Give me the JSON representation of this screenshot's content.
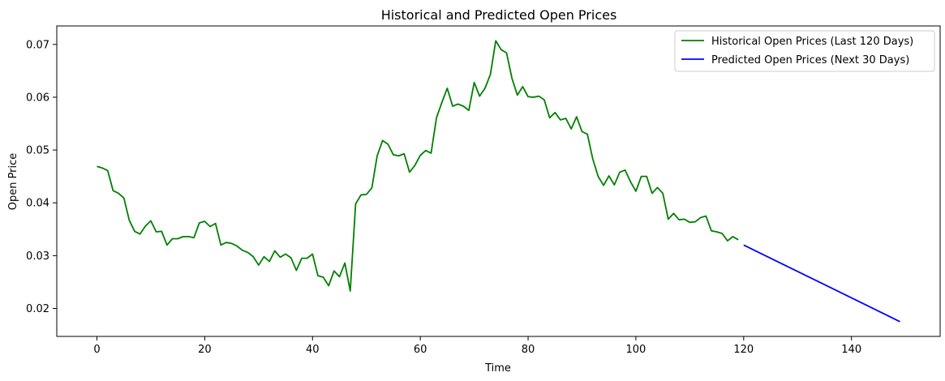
{
  "chart_data": {
    "type": "line",
    "title": "Historical and Predicted Open Prices",
    "xlabel": "Time",
    "ylabel": "Open Price",
    "xlim": [
      -7.45,
      156.45
    ],
    "ylim": [
      0.0147,
      0.0735
    ],
    "xticks": [
      0,
      20,
      40,
      60,
      80,
      100,
      120,
      140
    ],
    "yticks": [
      0.02,
      0.03,
      0.04,
      0.05,
      0.06,
      0.07
    ],
    "xtick_labels": [
      "0",
      "20",
      "40",
      "60",
      "80",
      "100",
      "120",
      "140"
    ],
    "ytick_labels": [
      "0.02",
      "0.03",
      "0.04",
      "0.05",
      "0.06",
      "0.07"
    ],
    "grid": false,
    "legend_position": "upper right",
    "series": [
      {
        "name": "Historical Open Prices (Last 120 Days)",
        "color": "#008000",
        "x_start": 0,
        "values": [
          0.0469,
          0.0466,
          0.0461,
          0.0423,
          0.0418,
          0.0409,
          0.0367,
          0.0346,
          0.0341,
          0.0356,
          0.0366,
          0.0345,
          0.0346,
          0.032,
          0.0332,
          0.0332,
          0.0336,
          0.0336,
          0.0334,
          0.0362,
          0.0365,
          0.0355,
          0.0361,
          0.032,
          0.0325,
          0.0323,
          0.0318,
          0.031,
          0.0306,
          0.0298,
          0.0282,
          0.0298,
          0.0289,
          0.0309,
          0.0297,
          0.0303,
          0.0296,
          0.0272,
          0.0295,
          0.0295,
          0.0303,
          0.0262,
          0.0259,
          0.0243,
          0.0271,
          0.026,
          0.0286,
          0.0233,
          0.0398,
          0.0415,
          0.0416,
          0.0428,
          0.0489,
          0.0518,
          0.0511,
          0.0491,
          0.0489,
          0.0493,
          0.0458,
          0.0471,
          0.049,
          0.0499,
          0.0494,
          0.0561,
          0.059,
          0.0617,
          0.0583,
          0.0587,
          0.0583,
          0.0575,
          0.0628,
          0.0602,
          0.0617,
          0.0643,
          0.0707,
          0.069,
          0.0684,
          0.0636,
          0.0604,
          0.062,
          0.0601,
          0.06,
          0.0602,
          0.0595,
          0.0561,
          0.0571,
          0.0557,
          0.056,
          0.054,
          0.0563,
          0.0535,
          0.053,
          0.0483,
          0.045,
          0.0433,
          0.0451,
          0.0434,
          0.0458,
          0.0462,
          0.044,
          0.0422,
          0.045,
          0.045,
          0.0418,
          0.0429,
          0.0418,
          0.0369,
          0.038,
          0.0368,
          0.0369,
          0.0363,
          0.0364,
          0.0372,
          0.0375,
          0.0347,
          0.0345,
          0.0342,
          0.0328,
          0.0336,
          0.033
        ]
      },
      {
        "name": "Predicted Open Prices (Next 30 Days)",
        "color": "#0000ff",
        "x": [
          120,
          149
        ],
        "values": [
          0.032,
          0.0175
        ]
      }
    ]
  }
}
